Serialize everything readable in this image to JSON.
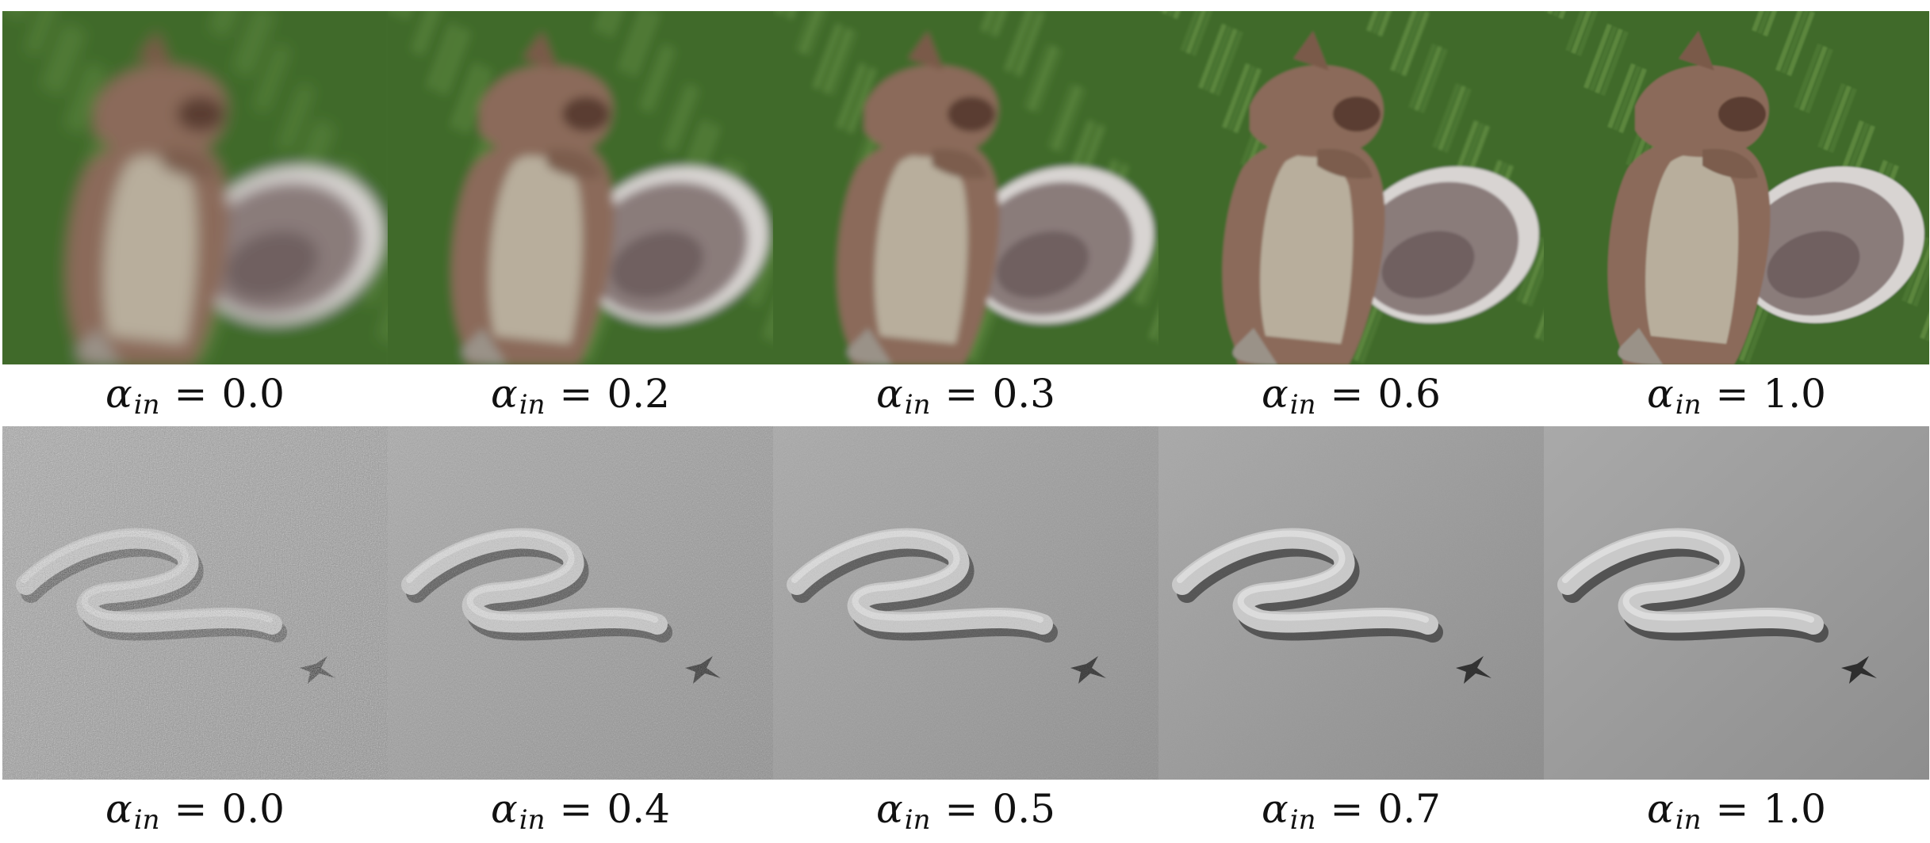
{
  "figure": {
    "rows": [
      {
        "name": "squirrel",
        "panels": [
          {
            "symbol": "α",
            "sub": "in",
            "value": "0.0",
            "blur": 9.0,
            "noise": 0.0
          },
          {
            "symbol": "α",
            "sub": "in",
            "value": "0.2",
            "blur": 6.0,
            "noise": 0.0
          },
          {
            "symbol": "α",
            "sub": "in",
            "value": "0.3",
            "blur": 4.0,
            "noise": 0.0
          },
          {
            "symbol": "α",
            "sub": "in",
            "value": "0.6",
            "blur": 1.6,
            "noise": 0.0
          },
          {
            "symbol": "α",
            "sub": "in",
            "value": "1.0",
            "blur": 1.0,
            "noise": 0.0
          }
        ]
      },
      {
        "name": "snake",
        "panels": [
          {
            "symbol": "α",
            "sub": "in",
            "value": "0.0",
            "blur": 0.0,
            "noise": 1.0
          },
          {
            "symbol": "α",
            "sub": "in",
            "value": "0.4",
            "blur": 0.0,
            "noise": 0.6
          },
          {
            "symbol": "α",
            "sub": "in",
            "value": "0.5",
            "blur": 0.0,
            "noise": 0.35
          },
          {
            "symbol": "α",
            "sub": "in",
            "value": "0.7",
            "blur": 0.0,
            "noise": 0.08
          },
          {
            "symbol": "α",
            "sub": "in",
            "value": "1.0",
            "blur": 0.0,
            "noise": 0.0
          }
        ]
      }
    ],
    "colors": {
      "grass_dark": "#3f6a2c",
      "grass_light": "#6e9a48",
      "fur": "#8b6b5a",
      "belly": "#b8ae9c",
      "tail": "#8a7c7a",
      "tail_rim": "#d8d4d2",
      "sand_light": "#a9a9a9",
      "sand_dark": "#8e8e8e",
      "snake_body": "#c9c9c9",
      "snake_shadow": "#3a3a3a"
    }
  }
}
